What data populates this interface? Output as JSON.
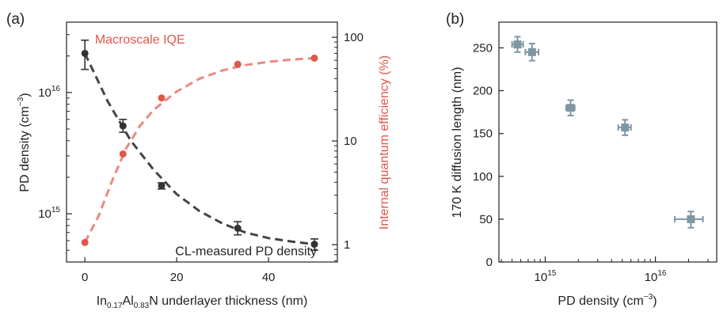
{
  "chart_data": [
    {
      "panel": "(a)",
      "type": "scatter",
      "xlabel": {
        "pre": "In",
        "sub1": "0.17",
        "mid": "Al",
        "sub2": "0.83",
        "post": "N underlayer thickness (nm)"
      },
      "xlim": [
        -4,
        55
      ],
      "xticks": [
        0,
        20,
        40
      ],
      "left_axis": {
        "label": {
          "base": "PD density (cm",
          "sup": "−3",
          "end": ")"
        },
        "scale": "log",
        "ylim": [
          400000000000000.0,
          3.8e+16
        ],
        "ticks": [
          {
            "value": 1e+16,
            "base": "10",
            "exp": "16"
          },
          {
            "value": 1000000000000000.0,
            "base": "10",
            "exp": "15"
          }
        ],
        "color": "#333333"
      },
      "right_axis": {
        "label": "Internal quantum efficiency (%)",
        "scale": "log",
        "ylim": [
          0.68,
          140
        ],
        "ticks": [
          {
            "value": 1,
            "label": "1"
          },
          {
            "value": 10,
            "label": "10"
          },
          {
            "value": 100,
            "label": "100"
          }
        ],
        "color": "#e0574a"
      },
      "series": [
        {
          "name": "CL-measured PD density",
          "axis": "left",
          "color": "#333333",
          "x": [
            0,
            8.3,
            16.7,
            33.3,
            50
          ],
          "y": [
            2.1e+16,
            5300000000000000.0,
            1700000000000000.0,
            760000000000000.0,
            560000000000000.0
          ],
          "yerr_low": [
            1.55e+16,
            4700000000000000.0,
            1600000000000000.0,
            670000000000000.0,
            500000000000000.0
          ],
          "yerr_high": [
            2.7e+16,
            6000000000000000.0,
            1800000000000000.0,
            860000000000000.0,
            620000000000000.0
          ]
        },
        {
          "name": "Macroscale IQE",
          "axis": "right",
          "color": "#e0574a",
          "x": [
            0,
            8.3,
            16.7,
            33.3,
            50
          ],
          "y": [
            1.05,
            7.5,
            26,
            55,
            63
          ]
        }
      ],
      "fit_curves": [
        {
          "axis": "left",
          "color": "#444444",
          "style": "dashed",
          "x": [
            0,
            5,
            10,
            15,
            20,
            25,
            30,
            35,
            40,
            45,
            50
          ],
          "y": [
            2.1e+16,
            8400000000000000.0,
            4000000000000000.0,
            2300000000000000.0,
            1450000000000000.0,
            1050000000000000.0,
            830000000000000.0,
            700000000000000.0,
            630000000000000.0,
            590000000000000.0,
            560000000000000.0
          ]
        },
        {
          "axis": "right",
          "color": "#e88a82",
          "style": "dashed",
          "x": [
            0,
            3,
            6,
            9,
            12,
            15,
            20,
            25,
            30,
            35,
            40,
            45,
            50
          ],
          "y": [
            1.05,
            1.9,
            4.2,
            8.5,
            14,
            20,
            30,
            40,
            48,
            54,
            58,
            61,
            63
          ]
        }
      ],
      "annotations": [
        {
          "text": "Macroscale IQE",
          "color": "#e0574a",
          "x": 12,
          "y_axis": "right",
          "y": 95
        },
        {
          "text": "CL-measured PD density",
          "color": "#222222",
          "x": 42,
          "y_axis": "left",
          "y": 490000000000000.0
        }
      ]
    },
    {
      "panel": "(b)",
      "type": "scatter",
      "xlabel": {
        "base": "PD density (cm",
        "sup": "−3",
        "end": ")"
      },
      "ylabel": "170 K diffusion length (nm)",
      "x_scale": "log",
      "xlim": [
        380000000000000.0,
        3.6e+16
      ],
      "xticks": [
        {
          "value": 1000000000000000.0,
          "base": "10",
          "exp": "15"
        },
        {
          "value": 1e+16,
          "base": "10",
          "exp": "16"
        }
      ],
      "ylim": [
        0,
        280
      ],
      "yticks": [
        0,
        50,
        100,
        150,
        200,
        250
      ],
      "color": "#7f97a3",
      "points": [
        {
          "x": 560000000000000.0,
          "y": 254,
          "xerr": [
            500000000000000.0,
            630000000000000.0
          ],
          "yerr": [
            245,
            263
          ]
        },
        {
          "x": 760000000000000.0,
          "y": 245,
          "xerr": [
            660000000000000.0,
            870000000000000.0
          ],
          "yerr": [
            235,
            255
          ]
        },
        {
          "x": 1700000000000000.0,
          "y": 180,
          "xerr": [
            1550000000000000.0,
            1850000000000000.0
          ],
          "yerr": [
            171,
            189
          ]
        },
        {
          "x": 5300000000000000.0,
          "y": 157,
          "xerr": [
            4600000000000000.0,
            6000000000000000.0
          ],
          "yerr": [
            148,
            166
          ]
        },
        {
          "x": 2.1e+16,
          "y": 50,
          "xerr": [
            1.5e+16,
            2.7e+16
          ],
          "yerr": [
            40,
            59
          ]
        }
      ]
    }
  ]
}
